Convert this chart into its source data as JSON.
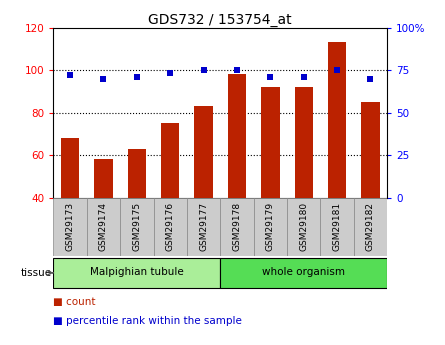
{
  "title": "GDS732 / 153754_at",
  "categories": [
    "GSM29173",
    "GSM29174",
    "GSM29175",
    "GSM29176",
    "GSM29177",
    "GSM29178",
    "GSM29179",
    "GSM29180",
    "GSM29181",
    "GSM29182"
  ],
  "counts": [
    68,
    58,
    63,
    75,
    83,
    98,
    92,
    92,
    113,
    85
  ],
  "percentiles": [
    72,
    70,
    71,
    73,
    75,
    75,
    71,
    71,
    75,
    70
  ],
  "left_ylim": [
    40,
    120
  ],
  "right_ylim": [
    0,
    100
  ],
  "left_yticks": [
    40,
    60,
    80,
    100,
    120
  ],
  "right_yticks": [
    0,
    25,
    50,
    75,
    100
  ],
  "right_yticklabels": [
    "0",
    "25",
    "50",
    "75",
    "100%"
  ],
  "bar_color": "#bb2200",
  "scatter_color": "#0000cc",
  "dotted_grid_values": [
    60,
    80,
    100
  ],
  "tissue_groups": [
    {
      "label": "Malpighian tubule",
      "start": 0,
      "end": 5,
      "color": "#aaee99"
    },
    {
      "label": "whole organism",
      "start": 5,
      "end": 10,
      "color": "#55dd55"
    }
  ],
  "tissue_label": "tissue",
  "legend_count_label": "count",
  "legend_pct_label": "percentile rank within the sample",
  "bar_width": 0.55,
  "title_fontsize": 10,
  "tick_label_fontsize": 6.5,
  "axis_tick_fontsize": 7.5,
  "legend_fontsize": 7.5
}
